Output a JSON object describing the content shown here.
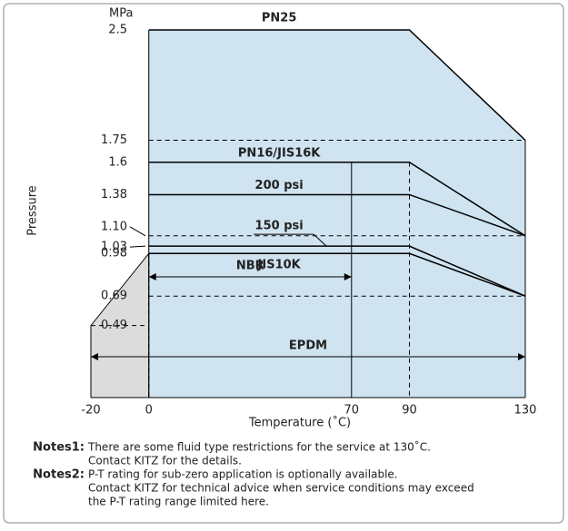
{
  "chart_data": {
    "type": "pt-rating",
    "y_unit": "MPa",
    "y_label": "Pressure",
    "x_label": "Temperature (˚C)",
    "xlim": [
      -20,
      130
    ],
    "xticks": [
      -20,
      0,
      70,
      90,
      130
    ],
    "ylim": [
      0,
      2.5
    ],
    "yticks": [
      2.5,
      1.75,
      1.6,
      1.38,
      {
        "value": 1.1,
        "label": "1.10"
      },
      1.03,
      0.98,
      0.69,
      0.49
    ],
    "envelope_color": "#cfe3f0",
    "subzero_color": "#dcdcdc",
    "series": [
      {
        "name": "PN25",
        "x": [
          0,
          90,
          130
        ],
        "values": [
          2.5,
          2.5,
          1.75
        ]
      },
      {
        "name": "PN16/JIS16K",
        "x": [
          0,
          90,
          130
        ],
        "values": [
          1.6,
          1.6,
          1.1
        ]
      },
      {
        "name": "200 psi",
        "x": [
          0,
          90,
          130
        ],
        "values": [
          1.38,
          1.38,
          1.1
        ]
      },
      {
        "name": "150 psi",
        "x": [
          0,
          90,
          130
        ],
        "values": [
          1.03,
          1.03,
          0.69
        ]
      },
      {
        "name": "JIS10K",
        "x": [
          0,
          90,
          130
        ],
        "values": [
          0.98,
          0.98,
          0.69
        ]
      }
    ],
    "subzero": {
      "x": [
        -20,
        0
      ],
      "values": [
        0.49,
        0.98
      ]
    },
    "ranges": [
      {
        "name": "NBR",
        "from": 0,
        "to": 70
      },
      {
        "name": "EPDM",
        "from": -20,
        "to": 130
      }
    ],
    "notes": [
      {
        "label": "Notes1:",
        "lines": [
          "There are some fluid type restrictions for the service at 130˚C.",
          "Contact KITZ for the details."
        ]
      },
      {
        "label": "Notes2:",
        "lines": [
          "P-T rating for sub-zero application is optionally available.",
          "Contact KITZ for technical advice when service conditions may exceed",
          "the P-T rating range limited here."
        ]
      }
    ]
  }
}
